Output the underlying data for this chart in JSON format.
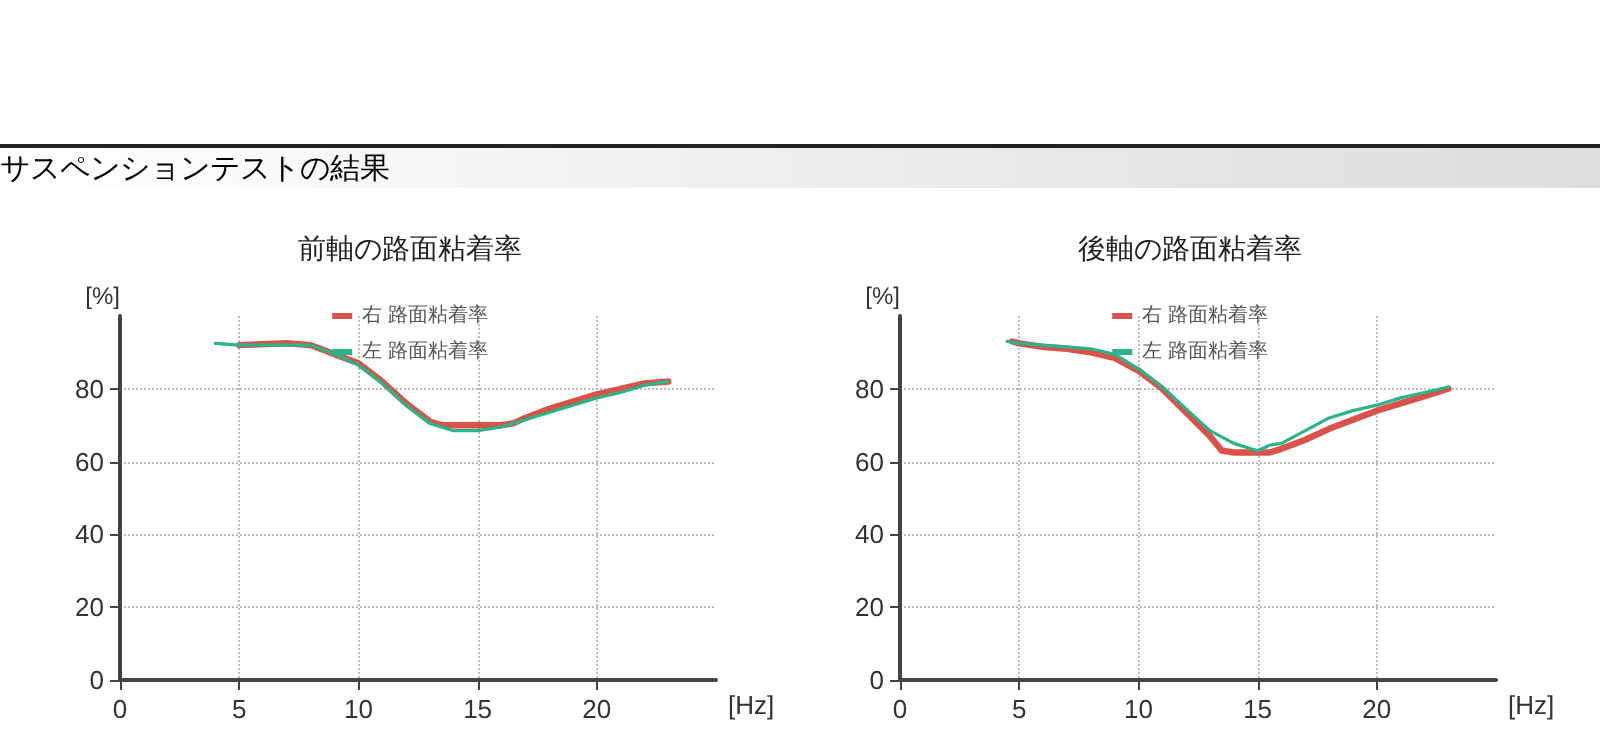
{
  "chart_data": [
    {
      "type": "line",
      "title": "前軸の路面粘着率",
      "annotations": [
        "サスペンションテストの結果"
      ],
      "xlabel": "[Hz]",
      "ylabel": "[%]",
      "xlim": [
        0,
        25
      ],
      "xticks": [
        0,
        5,
        10,
        15,
        20
      ],
      "ylim": [
        0,
        100
      ],
      "yticks": [
        0,
        20,
        40,
        60,
        80
      ],
      "grid": true,
      "legend": "top",
      "marker": "none",
      "line_style": "solid",
      "series": [
        {
          "name": "右 路面粘着率",
          "color": "#d9534a",
          "x": [
            5,
            7,
            8,
            9,
            10,
            11,
            12,
            13,
            13.5,
            14,
            15,
            16,
            16.5,
            17,
            18,
            19,
            20,
            21,
            22,
            23
          ],
          "values": [
            92,
            92.5,
            92,
            89.5,
            87,
            82,
            76,
            71,
            70,
            70,
            70,
            70,
            70.5,
            72,
            74.5,
            76.5,
            78.5,
            80,
            81.5,
            82
          ]
        },
        {
          "name": "左 路面粘着率",
          "color": "#2bb38a",
          "x": [
            4,
            5,
            7,
            8,
            9,
            10,
            11,
            12,
            13,
            14,
            15,
            16,
            17,
            18,
            19,
            20,
            21,
            22,
            23
          ],
          "values": [
            92.5,
            92,
            92,
            92,
            89.5,
            86.5,
            81.5,
            75.5,
            70.5,
            68.5,
            68.5,
            69.5,
            71.5,
            73.5,
            75.5,
            77.5,
            79,
            81,
            82
          ]
        }
      ]
    },
    {
      "type": "line",
      "title": "後軸の路面粘着率",
      "xlabel": "[Hz]",
      "ylabel": "[%]",
      "xlim": [
        0,
        25
      ],
      "xticks": [
        0,
        5,
        10,
        15,
        20
      ],
      "ylim": [
        0,
        100
      ],
      "yticks": [
        0,
        20,
        40,
        60,
        80
      ],
      "grid": true,
      "legend": "top",
      "marker": "none",
      "line_style": "solid",
      "series": [
        {
          "name": "右 路面粘着率",
          "color": "#d9534a",
          "x": [
            4.7,
            5,
            6,
            7,
            8,
            9,
            10,
            11,
            12,
            13,
            13.5,
            14,
            15,
            15.5,
            16,
            17,
            18,
            19,
            20,
            21,
            22,
            23
          ],
          "values": [
            93,
            92.5,
            91.5,
            91,
            90,
            88.5,
            85,
            80,
            73.5,
            67,
            63,
            62.5,
            62.5,
            62.5,
            63.5,
            66,
            69,
            71.5,
            74,
            76,
            78,
            80
          ]
        },
        {
          "name": "左 路面粘着率",
          "color": "#2bb38a",
          "x": [
            4.5,
            5,
            6,
            7,
            8,
            9,
            10,
            11,
            12,
            13,
            14,
            15,
            15.5,
            16,
            17,
            18,
            19,
            20,
            21,
            22,
            23
          ],
          "values": [
            93,
            92.5,
            92,
            91.5,
            91,
            89.5,
            85.5,
            80.5,
            74.5,
            68.5,
            65,
            63,
            64.5,
            65,
            68.5,
            72,
            74,
            75.5,
            77.5,
            79,
            80.5
          ]
        }
      ]
    }
  ]
}
